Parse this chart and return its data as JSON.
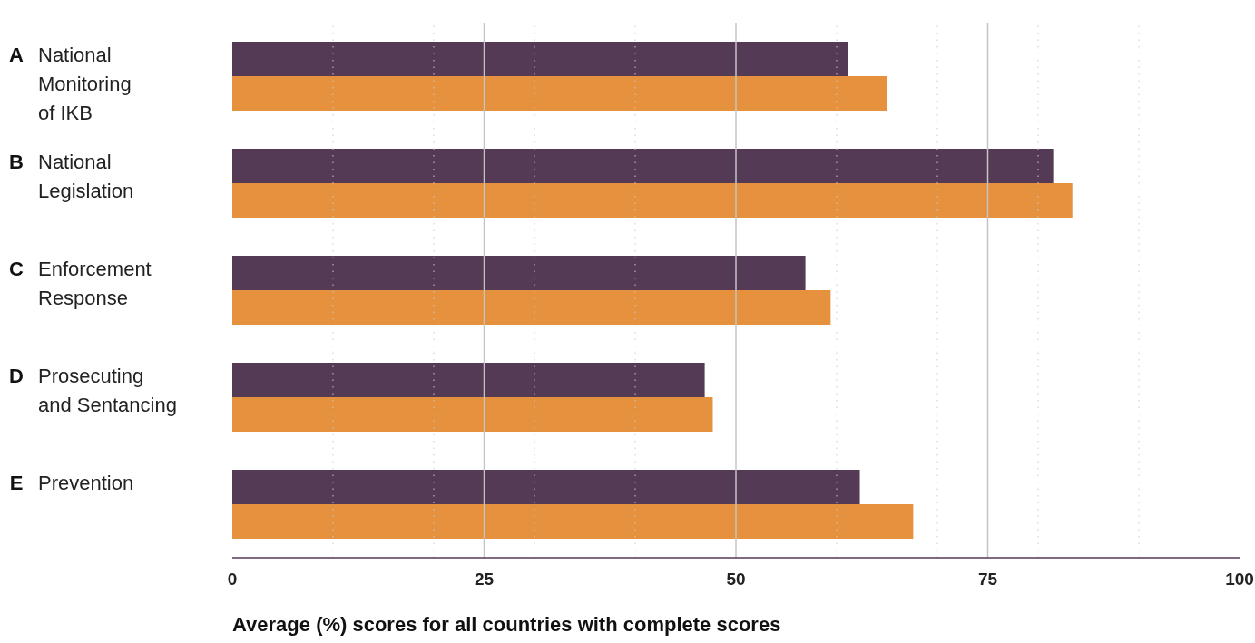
{
  "chart_data": {
    "type": "bar",
    "orientation": "horizontal",
    "xlabel": "Average (%) scores for all countries with complete scores",
    "categories": [
      "A National\nMonitoring\nof IKB",
      "B National\nLegislation",
      "C Enforcement\nResponse",
      "D Prosecuting\nand Sentancing",
      "E Prevention"
    ],
    "series": [
      {
        "color": "#553a55",
        "values": [
          61.1,
          81.5,
          56.9,
          46.9,
          62.3
        ]
      },
      {
        "color": "#e5913d",
        "values": [
          65.0,
          83.4,
          59.4,
          47.7,
          67.6
        ]
      }
    ],
    "xlim": [
      0,
      100
    ],
    "xticks": [
      0,
      {
        "value": 10,
        "label": null
      },
      {
        "value": 20,
        "label": null
      },
      25,
      {
        "value": 30,
        "label": null
      },
      {
        "value": 40,
        "label": null
      },
      50,
      {
        "value": 60,
        "label": null
      },
      {
        "value": 70,
        "label": null
      },
      75,
      {
        "value": 80,
        "label": null
      },
      {
        "value": 90,
        "label": null
      },
      100
    ],
    "grid": "x"
  }
}
